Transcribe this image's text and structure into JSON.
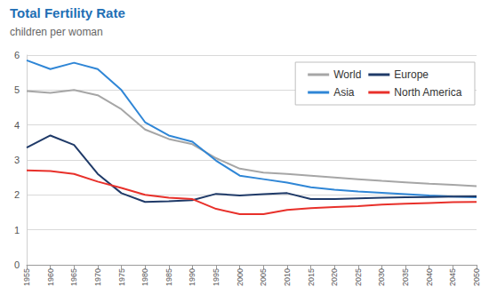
{
  "chart_data": {
    "type": "line",
    "title": "Total Fertility Rate",
    "subtitle": "children per woman",
    "x": [
      1955,
      1960,
      1965,
      1970,
      1975,
      1980,
      1985,
      1990,
      1995,
      2000,
      2005,
      2010,
      2015,
      2020,
      2025,
      2030,
      2035,
      2040,
      2045,
      2050
    ],
    "xlim": [
      1955,
      2050
    ],
    "xticks": [
      1955,
      1960,
      1965,
      1970,
      1975,
      1980,
      1985,
      1990,
      1995,
      2000,
      2005,
      2010,
      2015,
      2020,
      2025,
      2030,
      2035,
      2040,
      2045,
      2050
    ],
    "ylim": [
      0,
      6
    ],
    "yticks": [
      0,
      1,
      2,
      3,
      4,
      5,
      6
    ],
    "grid": true,
    "legend": "top-right",
    "series": [
      {
        "name": "World",
        "color": "#a6a6a6",
        "values": [
          4.97,
          4.92,
          5.0,
          4.85,
          4.45,
          3.87,
          3.6,
          3.45,
          3.05,
          2.75,
          2.64,
          2.6,
          2.55,
          2.5,
          2.45,
          2.4,
          2.36,
          2.32,
          2.29,
          2.25
        ]
      },
      {
        "name": "Asia",
        "color": "#2f86d6",
        "values": [
          5.85,
          5.6,
          5.78,
          5.6,
          5.0,
          4.08,
          3.7,
          3.52,
          2.98,
          2.55,
          2.45,
          2.35,
          2.22,
          2.15,
          2.1,
          2.06,
          2.02,
          1.98,
          1.95,
          1.93
        ]
      },
      {
        "name": "Europe",
        "color": "#1f3a68",
        "values": [
          3.35,
          3.7,
          3.43,
          2.6,
          2.05,
          1.8,
          1.82,
          1.85,
          2.03,
          1.98,
          2.02,
          2.05,
          1.88,
          1.88,
          1.9,
          1.92,
          1.93,
          1.94,
          1.95,
          1.96
        ]
      },
      {
        "name": "North America",
        "color": "#e8302a",
        "values": [
          2.7,
          2.68,
          2.6,
          2.38,
          2.2,
          2.0,
          1.92,
          1.88,
          1.6,
          1.45,
          1.45,
          1.57,
          1.62,
          1.65,
          1.68,
          1.72,
          1.75,
          1.77,
          1.79,
          1.8
        ]
      }
    ]
  }
}
